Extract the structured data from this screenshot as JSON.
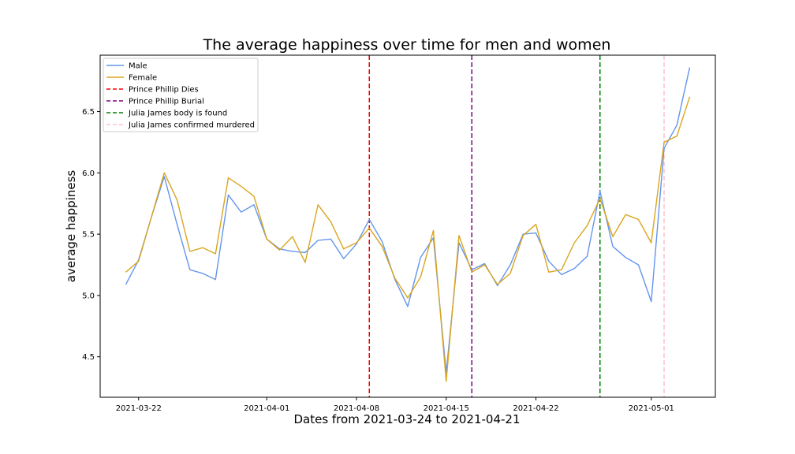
{
  "chart_data": {
    "type": "line",
    "title": "The average happiness over time for men and women",
    "xlabel": "Dates from 2021-03-24 to 2021-04-21",
    "ylabel": "average happiness",
    "x_range": [
      "2021-03-19",
      "2021-05-06"
    ],
    "ylim": [
      4.17,
      6.96
    ],
    "grid": false,
    "legend_position": "top-left",
    "x_ticks": [
      "2021-03-22",
      "2021-04-01",
      "2021-04-08",
      "2021-04-15",
      "2021-04-22",
      "2021-05-01"
    ],
    "y_ticks": [
      "4.5",
      "5.0",
      "5.5",
      "6.0",
      "6.5"
    ],
    "x": [
      "2021-03-21",
      "2021-03-22",
      "2021-03-23",
      "2021-03-24",
      "2021-03-25",
      "2021-03-26",
      "2021-03-27",
      "2021-03-28",
      "2021-03-29",
      "2021-03-30",
      "2021-03-31",
      "2021-04-01",
      "2021-04-02",
      "2021-04-03",
      "2021-04-04",
      "2021-04-05",
      "2021-04-06",
      "2021-04-07",
      "2021-04-08",
      "2021-04-09",
      "2021-04-10",
      "2021-04-11",
      "2021-04-12",
      "2021-04-13",
      "2021-04-14",
      "2021-04-15",
      "2021-04-16",
      "2021-04-17",
      "2021-04-18",
      "2021-04-19",
      "2021-04-20",
      "2021-04-21",
      "2021-04-22",
      "2021-04-23",
      "2021-04-24",
      "2021-04-25",
      "2021-04-26",
      "2021-04-27",
      "2021-04-28",
      "2021-04-29",
      "2021-04-30",
      "2021-05-01",
      "2021-05-02",
      "2021-05-03",
      "2021-05-04"
    ],
    "series": [
      {
        "name": "Male",
        "color": "#6495ed",
        "values": [
          5.09,
          5.29,
          5.64,
          5.97,
          5.58,
          5.21,
          5.18,
          5.13,
          5.82,
          5.68,
          5.74,
          5.46,
          5.38,
          5.36,
          5.35,
          5.45,
          5.46,
          5.3,
          5.42,
          5.62,
          5.44,
          5.13,
          4.91,
          5.31,
          5.47,
          4.37,
          5.43,
          5.21,
          5.26,
          5.08,
          5.25,
          5.5,
          5.51,
          5.28,
          5.17,
          5.22,
          5.32,
          5.85,
          5.4,
          5.31,
          5.25,
          4.95,
          6.2,
          6.39,
          6.86
        ]
      },
      {
        "name": "Female",
        "color": "#daa520",
        "values": [
          5.19,
          5.28,
          5.64,
          6.0,
          5.78,
          5.36,
          5.39,
          5.34,
          5.96,
          5.89,
          5.81,
          5.46,
          5.37,
          5.48,
          5.27,
          5.74,
          5.6,
          5.38,
          5.43,
          5.55,
          5.4,
          5.14,
          4.98,
          5.15,
          5.53,
          4.3,
          5.49,
          5.19,
          5.25,
          5.09,
          5.18,
          5.49,
          5.58,
          5.19,
          5.21,
          5.43,
          5.57,
          5.79,
          5.48,
          5.66,
          5.62,
          5.43,
          6.25,
          6.3,
          6.62
        ]
      }
    ],
    "vertical_lines": [
      {
        "name": "Prince Phillip Dies",
        "x": "2021-04-09",
        "color": "#ff0000"
      },
      {
        "name": "Prince Phillip Burial",
        "x": "2021-04-17",
        "color": "#800080"
      },
      {
        "name": "Julia James body is found",
        "x": "2021-04-27",
        "color": "#008000"
      },
      {
        "name": "Julia James confirmed murdered",
        "x": "2021-05-02",
        "color": "#ffc0cb"
      }
    ]
  }
}
